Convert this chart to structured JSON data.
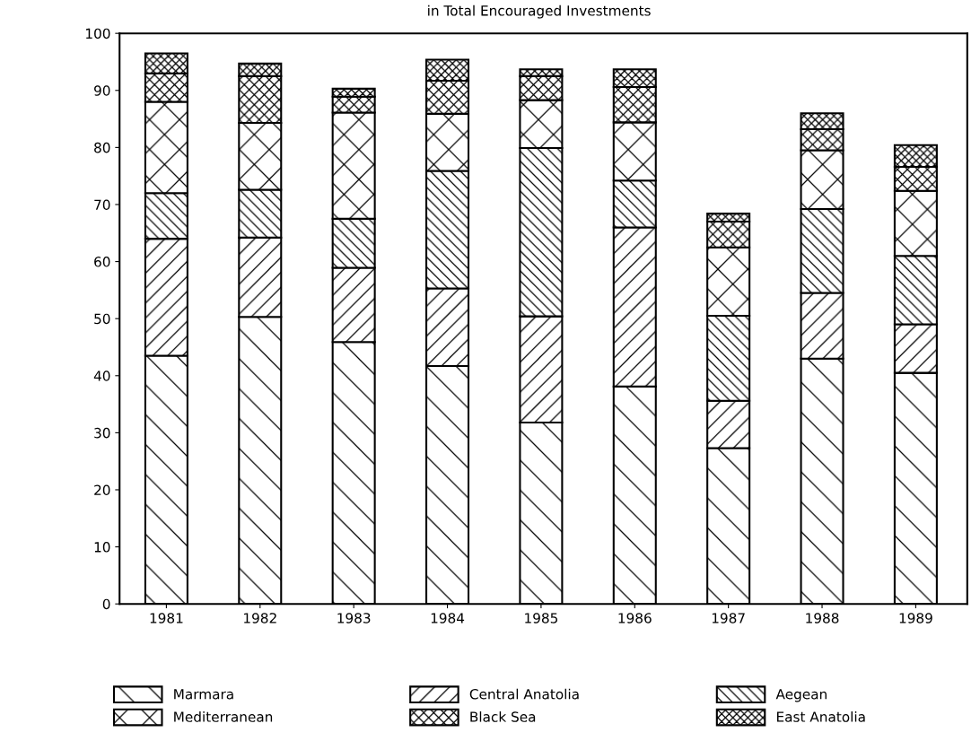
{
  "chart_data": {
    "type": "bar",
    "title": "in Total Encouraged Investments",
    "stacked": true,
    "categories": [
      "1981",
      "1982",
      "1983",
      "1984",
      "1985",
      "1986",
      "1987",
      "1988",
      "1989"
    ],
    "series": [
      {
        "name": "Marmara",
        "color": "#000000",
        "values": [
          43.5,
          50.3,
          45.9,
          41.7,
          31.8,
          38.1,
          27.3,
          43.0,
          40.5
        ]
      },
      {
        "name": "Central Anatolia",
        "color": "#000000",
        "values": [
          20.5,
          13.9,
          13.0,
          13.6,
          18.6,
          27.9,
          8.3,
          11.5,
          8.5
        ]
      },
      {
        "name": "Aegean",
        "color": "#000000",
        "values": [
          8.0,
          8.4,
          8.6,
          20.6,
          29.5,
          8.2,
          14.9,
          14.7,
          12.0
        ]
      },
      {
        "name": "Mediterranean",
        "color": "#000000",
        "values": [
          16.0,
          11.7,
          18.6,
          10.0,
          8.4,
          10.2,
          12.0,
          10.3,
          11.4
        ]
      },
      {
        "name": "Black Sea",
        "color": "#000000",
        "values": [
          5.0,
          8.2,
          2.8,
          5.8,
          4.2,
          6.2,
          4.5,
          3.7,
          4.2
        ]
      },
      {
        "name": "East Anatolia",
        "color": "#000000",
        "values": [
          3.5,
          2.2,
          1.4,
          3.7,
          1.2,
          3.1,
          1.4,
          2.8,
          3.8
        ]
      }
    ],
    "ylim": [
      0,
      100
    ],
    "yticks": [
      0,
      10,
      20,
      30,
      40,
      50,
      60,
      70,
      80,
      90,
      100
    ],
    "grid": false,
    "legend": "bottom"
  }
}
